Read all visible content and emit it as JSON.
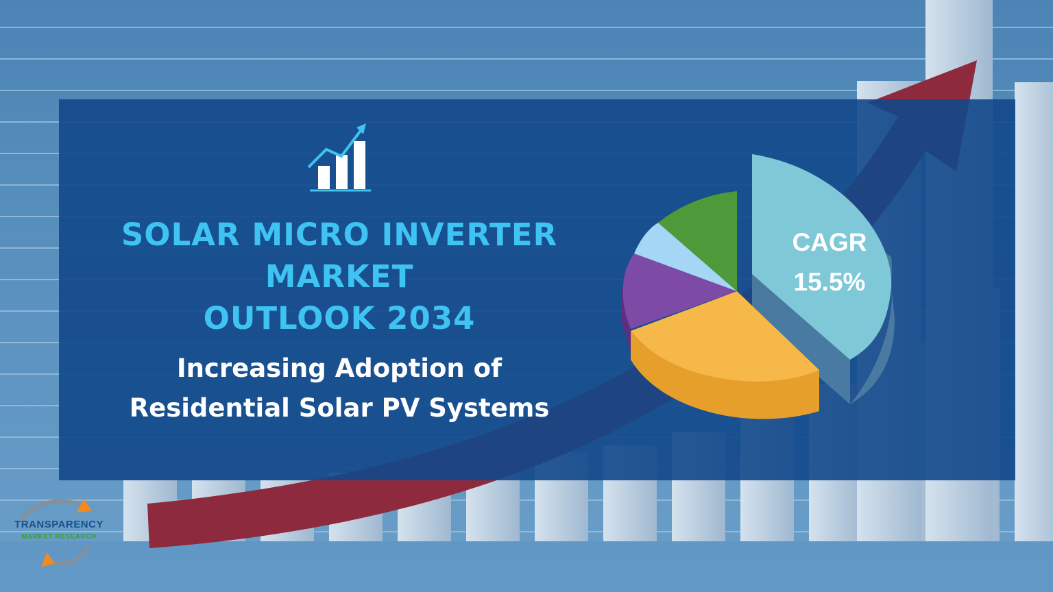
{
  "headline": {
    "line1": "SOLAR MICRO INVERTER",
    "line2": "MARKET",
    "line3": "OUTLOOK 2034"
  },
  "subheadline": {
    "line1": "Increasing Adoption of",
    "line2": "Residential Solar PV Systems"
  },
  "cagr": {
    "label": "CAGR",
    "value": "15.5%"
  },
  "logo": {
    "line1": "TRANSPARENCY",
    "line2": "MARKET RESEARCH"
  },
  "icons": {
    "chart": "growth-chart-icon",
    "pie": "pie-chart-icon"
  },
  "colors": {
    "headline": "#3fc3f2",
    "panel": "#12488a",
    "arrow": "#8e2a3e",
    "slice_teal": "#7fc8d8",
    "slice_orange": "#f7b84a",
    "slice_purple": "#7d4aa6",
    "slice_lightblue": "#a6d6f5",
    "slice_green": "#4e9a3a"
  }
}
